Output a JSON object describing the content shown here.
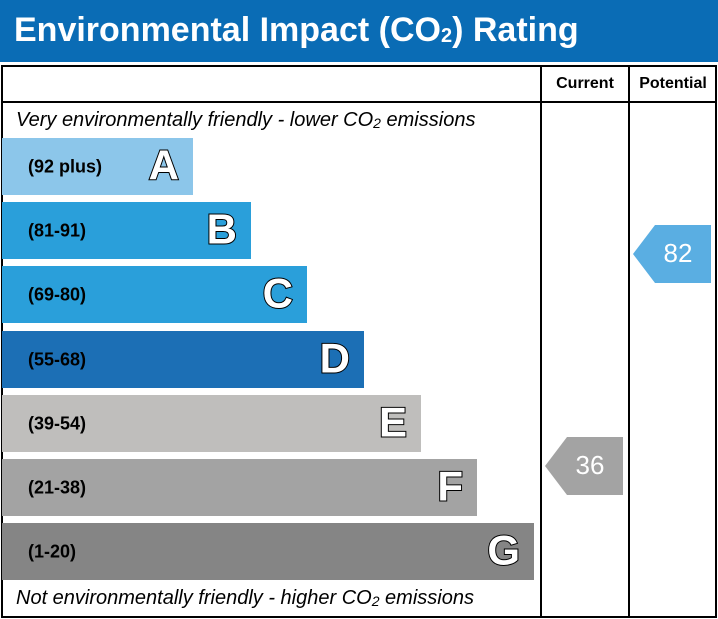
{
  "title": [
    "Environmental Impact (CO",
    "2",
    ") Rating"
  ],
  "columns": {
    "current": "Current",
    "potential": "Potential"
  },
  "top_caption": [
    "Very environmentally friendly - lower CO",
    "2",
    " emissions"
  ],
  "bottom_caption": [
    "Not environmentally friendly - higher CO",
    "2",
    " emissions"
  ],
  "bands": [
    {
      "range": "(92 plus)",
      "letter": "A",
      "color": "#8cc6ea"
    },
    {
      "range": "(81-91)",
      "letter": "B",
      "color": "#2a9fda"
    },
    {
      "range": "(69-80)",
      "letter": "C",
      "color": "#2a9fda"
    },
    {
      "range": "(55-68)",
      "letter": "D",
      "color": "#1c6fb5"
    },
    {
      "range": "(39-54)",
      "letter": "E",
      "color": "#bfbebc"
    },
    {
      "range": "(21-38)",
      "letter": "F",
      "color": "#a3a3a3"
    },
    {
      "range": "(1-20)",
      "letter": "G",
      "color": "#858585"
    }
  ],
  "current": {
    "value": 36,
    "color": "#a3a3a3"
  },
  "potential": {
    "value": 82,
    "color": "#5aaee2"
  }
}
